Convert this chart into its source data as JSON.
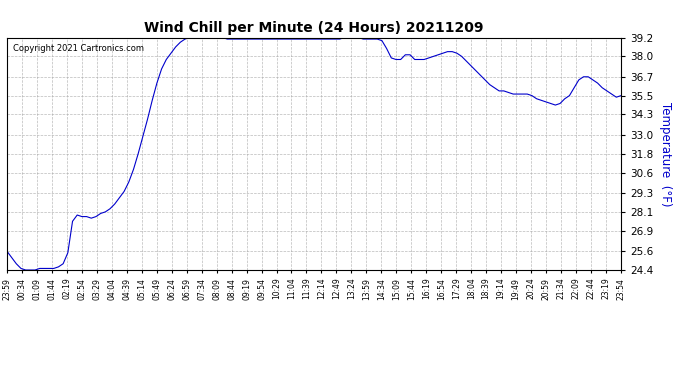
{
  "title": "Wind Chill per Minute (24 Hours) 20211209",
  "ylabel": "Temperature  (°F)",
  "copyright": "Copyright 2021 Cartronics.com",
  "line_color": "#0000cc",
  "background_color": "#ffffff",
  "grid_color": "#aaaaaa",
  "ylabel_color": "#0000cc",
  "ylim": [
    24.4,
    39.2
  ],
  "yticks": [
    24.4,
    25.6,
    26.9,
    28.1,
    29.3,
    30.6,
    31.8,
    33.0,
    34.3,
    35.5,
    36.7,
    38.0,
    39.2
  ],
  "xtick_labels": [
    "23:59",
    "00:34",
    "01:09",
    "01:44",
    "02:19",
    "02:54",
    "03:29",
    "04:04",
    "04:39",
    "05:14",
    "05:49",
    "06:24",
    "06:59",
    "07:34",
    "08:09",
    "08:44",
    "09:19",
    "09:54",
    "10:29",
    "11:04",
    "11:39",
    "12:14",
    "12:49",
    "13:24",
    "13:59",
    "14:34",
    "15:09",
    "15:44",
    "16:19",
    "16:54",
    "17:29",
    "18:04",
    "18:39",
    "19:14",
    "19:49",
    "20:24",
    "20:59",
    "21:34",
    "22:09",
    "22:44",
    "23:19",
    "23:54"
  ],
  "data_profile": [
    25.6,
    25.2,
    24.8,
    24.5,
    24.4,
    24.4,
    24.4,
    24.5,
    24.5,
    24.5,
    24.5,
    24.6,
    24.8,
    25.5,
    27.5,
    27.9,
    27.8,
    27.8,
    27.7,
    27.8,
    28.0,
    28.1,
    28.3,
    28.6,
    29.0,
    29.4,
    30.0,
    30.8,
    31.8,
    32.9,
    34.0,
    35.2,
    36.3,
    37.2,
    37.8,
    38.2,
    38.6,
    38.9,
    39.1,
    39.2,
    39.2,
    39.2,
    39.2,
    39.2,
    39.2,
    39.2,
    39.2,
    39.1,
    39.1,
    39.1,
    39.1,
    39.1,
    39.1,
    39.1,
    39.1,
    39.1,
    39.1,
    39.1,
    39.1,
    39.1,
    39.1,
    39.1,
    39.1,
    39.1,
    39.1,
    39.1,
    39.1,
    39.1,
    39.1,
    39.1,
    39.1,
    39.1,
    39.2,
    39.2,
    39.2,
    39.2,
    39.1,
    39.1,
    39.1,
    39.1,
    39.0,
    38.5,
    37.9,
    37.8,
    37.8,
    38.1,
    38.1,
    37.8,
    37.8,
    37.8,
    37.9,
    38.0,
    38.1,
    38.2,
    38.3,
    38.3,
    38.2,
    38.0,
    37.7,
    37.4,
    37.1,
    36.8,
    36.5,
    36.2,
    36.0,
    35.8,
    35.8,
    35.7,
    35.6,
    35.6,
    35.6,
    35.6,
    35.5,
    35.3,
    35.2,
    35.1,
    35.0,
    34.9,
    35.0,
    35.3,
    35.5,
    36.0,
    36.5,
    36.7,
    36.7,
    36.5,
    36.3,
    36.0,
    35.8,
    35.6,
    35.4,
    35.5
  ]
}
